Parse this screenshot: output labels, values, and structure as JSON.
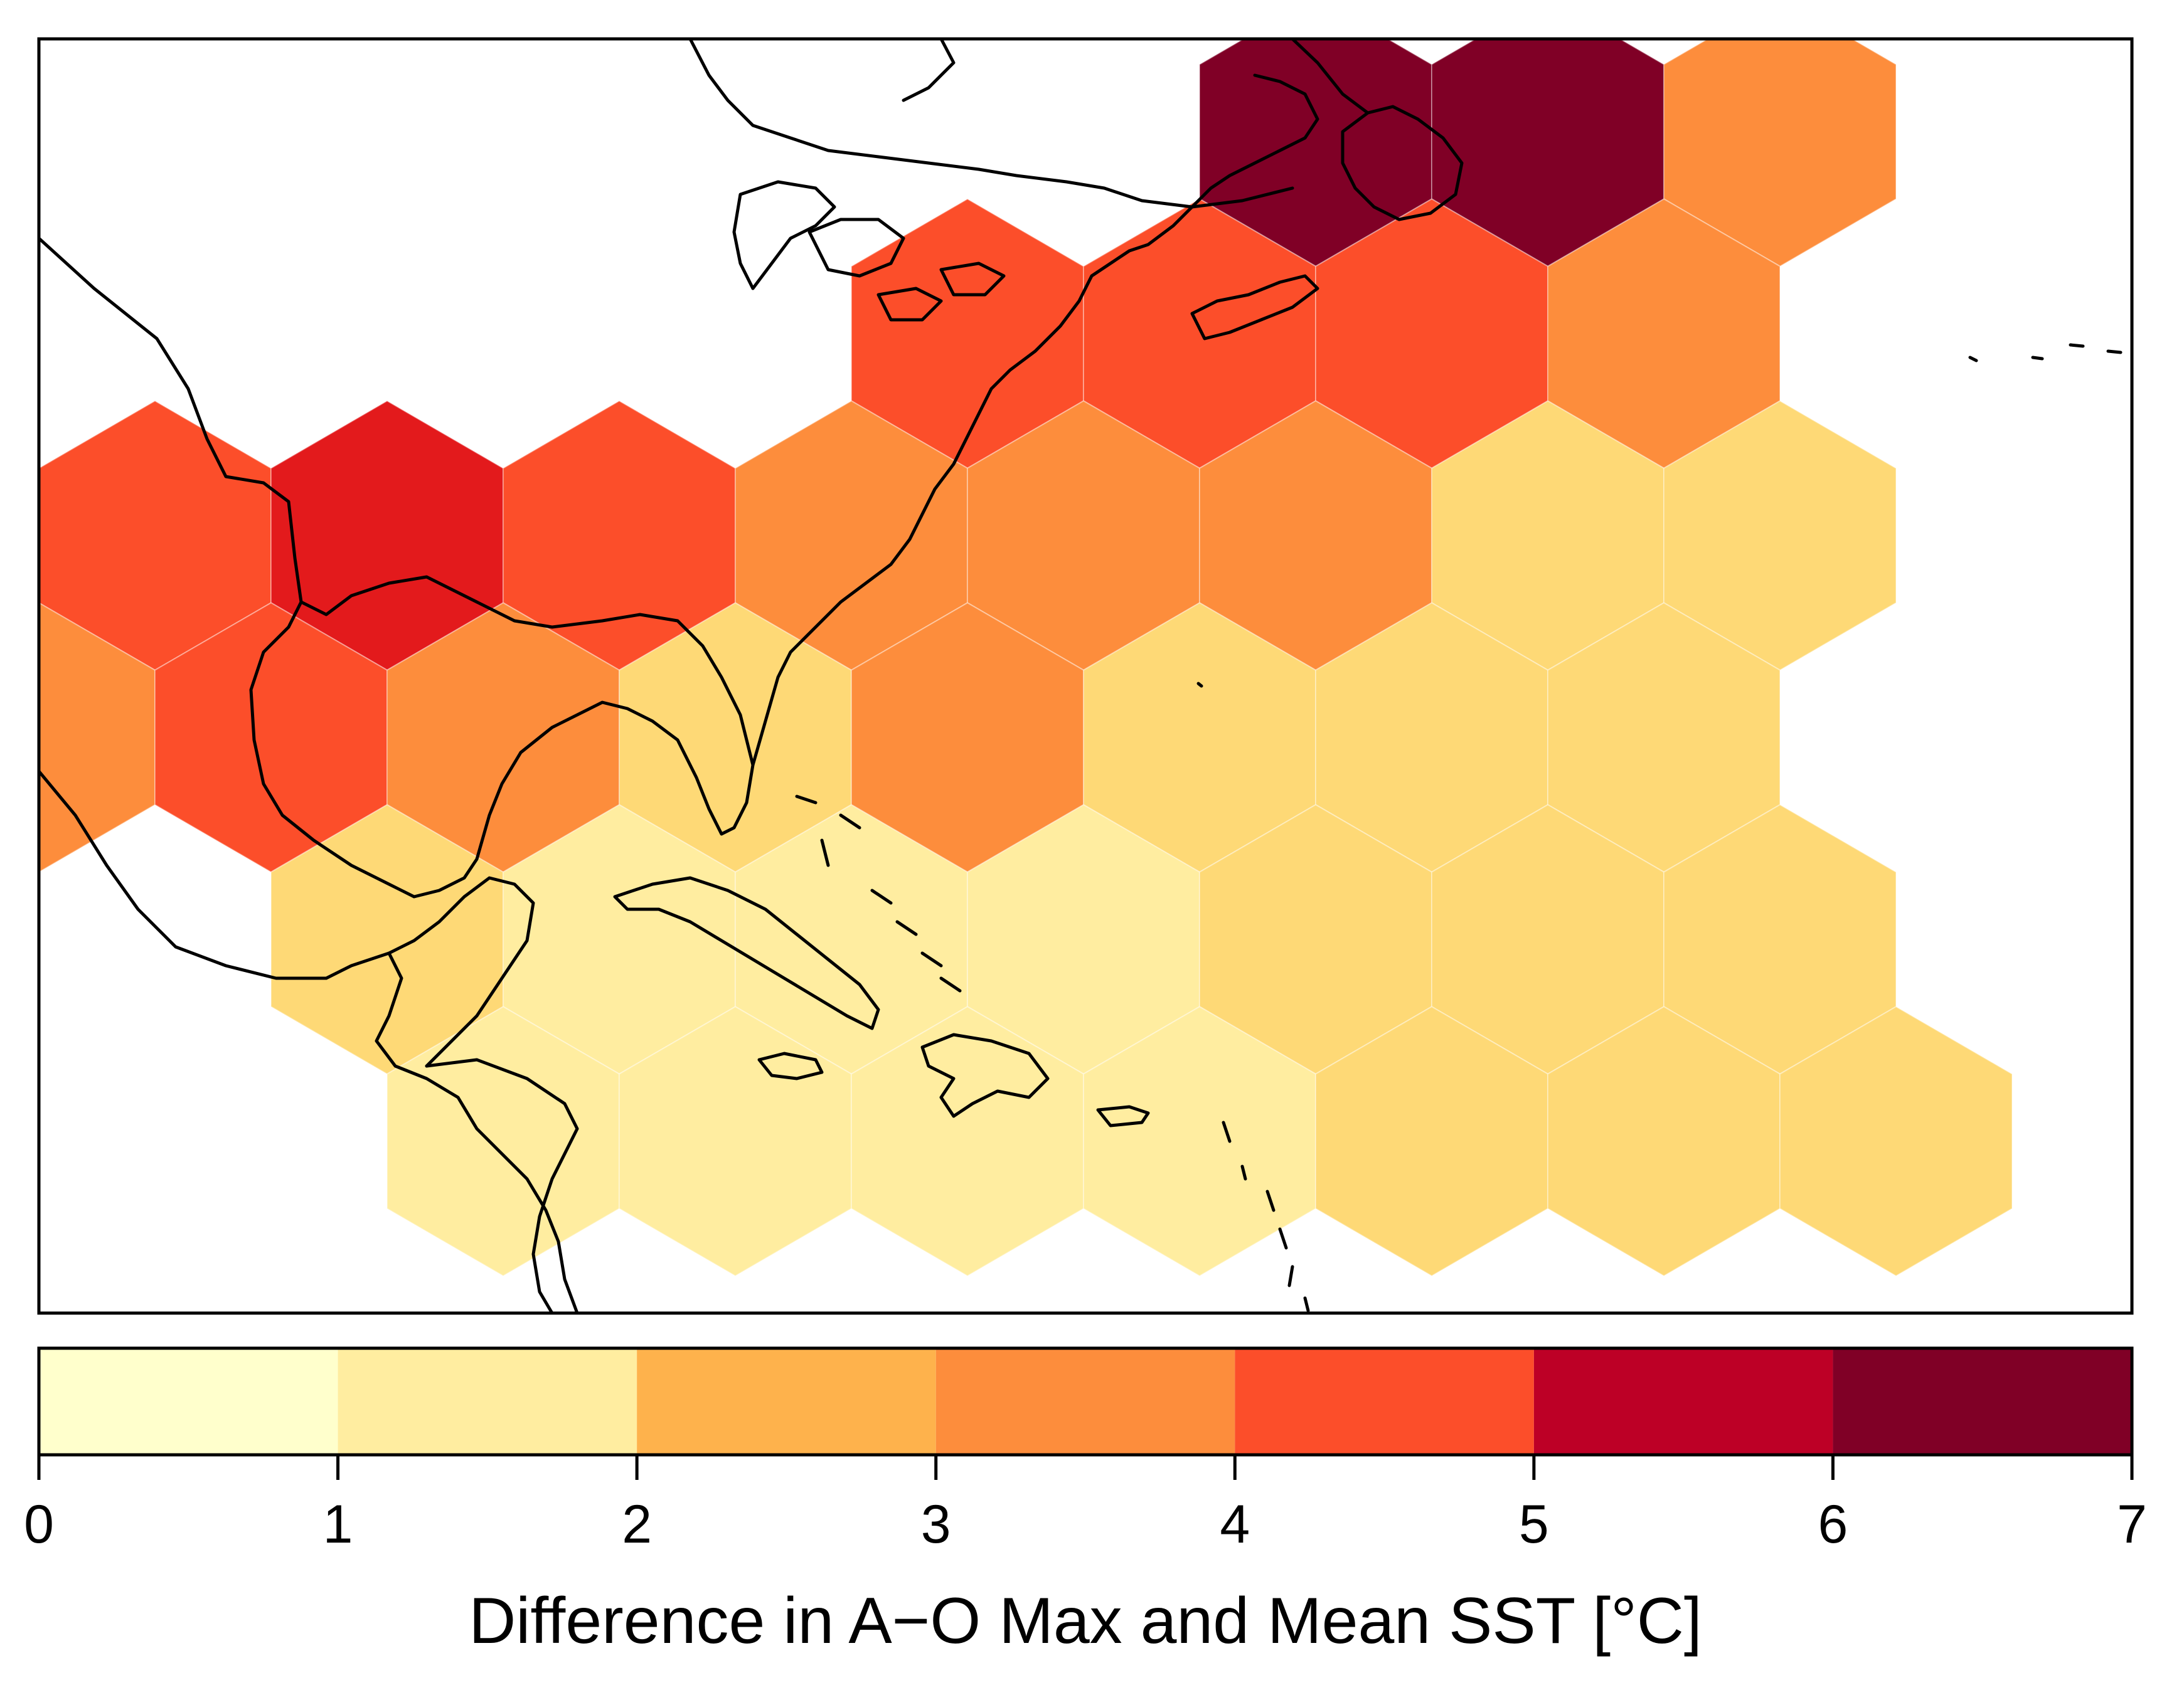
{
  "chart_data": {
    "type": "heatmap",
    "subtype": "hexbin-map",
    "title": "",
    "region": "North Atlantic / Gulf of Mexico / Caribbean",
    "colorbar": {
      "label": "Difference in A−O Max and Mean SST [°C]",
      "min": 0,
      "max": 7,
      "ticks": [
        "0",
        "1",
        "2",
        "3",
        "4",
        "5",
        "6",
        "7"
      ],
      "bins": [
        {
          "range": [
            0,
            1
          ],
          "color": "#ffffcc"
        },
        {
          "range": [
            1,
            2
          ],
          "color": "#ffeda0"
        },
        {
          "range": [
            2,
            3
          ],
          "color": "#feb24c"
        },
        {
          "range": [
            3,
            4
          ],
          "color": "#fd8d3c"
        },
        {
          "range": [
            4,
            5
          ],
          "color": "#fc4e2a"
        },
        {
          "range": [
            5,
            6
          ],
          "color": "#bd0026"
        },
        {
          "range": [
            6,
            7
          ],
          "color": "#800026"
        }
      ]
    },
    "hex_colors": {
      "dark_red": "#800026",
      "crimson": "#e31a1c",
      "red_orange": "#fc4e2a",
      "orange": "#fd8d3c",
      "light_orange": "#fed976",
      "yellow": "#ffeda0"
    },
    "hex_cells": [
      {
        "row": 0,
        "col": 11,
        "value": 6.5,
        "color": "dark_red"
      },
      {
        "row": 0,
        "col": 13,
        "value": 6.5,
        "color": "dark_red"
      },
      {
        "row": 0,
        "col": 15,
        "value": 3.5,
        "color": "orange"
      },
      {
        "row": 1,
        "col": 8,
        "value": 4.5,
        "color": "red_orange"
      },
      {
        "row": 1,
        "col": 10,
        "value": 4.5,
        "color": "red_orange"
      },
      {
        "row": 1,
        "col": 12,
        "value": 4.5,
        "color": "red_orange"
      },
      {
        "row": 1,
        "col": 14,
        "value": 3.5,
        "color": "orange"
      },
      {
        "row": 2,
        "col": 1,
        "value": 4.5,
        "color": "red_orange"
      },
      {
        "row": 2,
        "col": 3,
        "value": 5.5,
        "color": "crimson"
      },
      {
        "row": 2,
        "col": 5,
        "value": 4.5,
        "color": "red_orange"
      },
      {
        "row": 2,
        "col": 7,
        "value": 3.5,
        "color": "orange"
      },
      {
        "row": 2,
        "col": 9,
        "value": 3.5,
        "color": "orange"
      },
      {
        "row": 2,
        "col": 11,
        "value": 3.5,
        "color": "orange"
      },
      {
        "row": 2,
        "col": 13,
        "value": 1.5,
        "color": "light_orange"
      },
      {
        "row": 2,
        "col": 15,
        "value": 1.5,
        "color": "light_orange"
      },
      {
        "row": 3,
        "col": 0,
        "value": 3.5,
        "color": "orange"
      },
      {
        "row": 3,
        "col": 2,
        "value": 4.5,
        "color": "red_orange"
      },
      {
        "row": 3,
        "col": 4,
        "value": 3.5,
        "color": "orange"
      },
      {
        "row": 3,
        "col": 6,
        "value": 1.5,
        "color": "light_orange"
      },
      {
        "row": 3,
        "col": 8,
        "value": 3.5,
        "color": "orange"
      },
      {
        "row": 3,
        "col": 10,
        "value": 1.5,
        "color": "light_orange"
      },
      {
        "row": 3,
        "col": 12,
        "value": 1.5,
        "color": "light_orange"
      },
      {
        "row": 3,
        "col": 14,
        "value": 1.5,
        "color": "light_orange"
      },
      {
        "row": 4,
        "col": 3,
        "value": 1.5,
        "color": "light_orange"
      },
      {
        "row": 4,
        "col": 5,
        "value": 1.2,
        "color": "yellow"
      },
      {
        "row": 4,
        "col": 7,
        "value": 1.2,
        "color": "yellow"
      },
      {
        "row": 4,
        "col": 9,
        "value": 1.2,
        "color": "yellow"
      },
      {
        "row": 4,
        "col": 11,
        "value": 1.5,
        "color": "light_orange"
      },
      {
        "row": 4,
        "col": 13,
        "value": 1.5,
        "color": "light_orange"
      },
      {
        "row": 4,
        "col": 15,
        "value": 1.5,
        "color": "light_orange"
      },
      {
        "row": 5,
        "col": 4,
        "value": 1.2,
        "color": "yellow"
      },
      {
        "row": 5,
        "col": 6,
        "value": 1.2,
        "color": "yellow"
      },
      {
        "row": 5,
        "col": 8,
        "value": 1.2,
        "color": "yellow"
      },
      {
        "row": 5,
        "col": 10,
        "value": 1.2,
        "color": "yellow"
      },
      {
        "row": 5,
        "col": 12,
        "value": 1.5,
        "color": "light_orange"
      },
      {
        "row": 5,
        "col": 14,
        "value": 1.5,
        "color": "light_orange"
      },
      {
        "row": 5,
        "col": 16,
        "value": 1.5,
        "color": "light_orange"
      }
    ]
  }
}
